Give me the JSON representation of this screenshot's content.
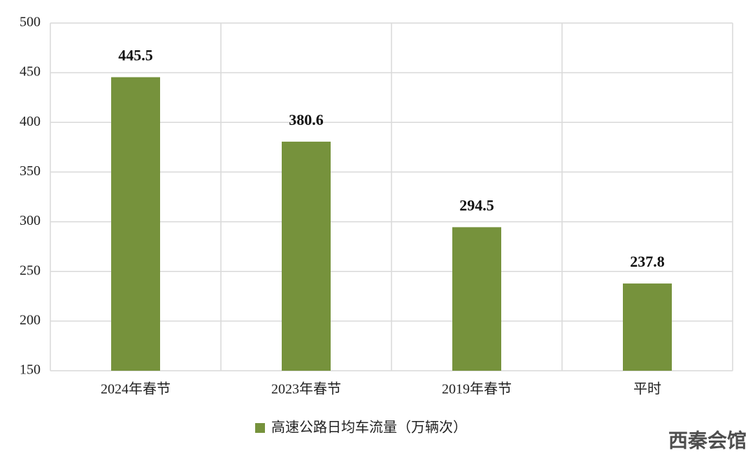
{
  "chart_data": {
    "type": "bar",
    "categories": [
      "2024年春节",
      "2023年春节",
      "2019年春节",
      "平时"
    ],
    "series": [
      {
        "name": "高速公路日均车流量（万辆次）",
        "color": "#76923c",
        "values": [
          445.5,
          380.6,
          294.5,
          237.8
        ]
      }
    ],
    "ylim": [
      150,
      500
    ],
    "yticks": [
      150,
      200,
      250,
      300,
      350,
      400,
      450,
      500
    ],
    "grid": true,
    "legend": "bottom",
    "watermark": "西秦会馆"
  }
}
